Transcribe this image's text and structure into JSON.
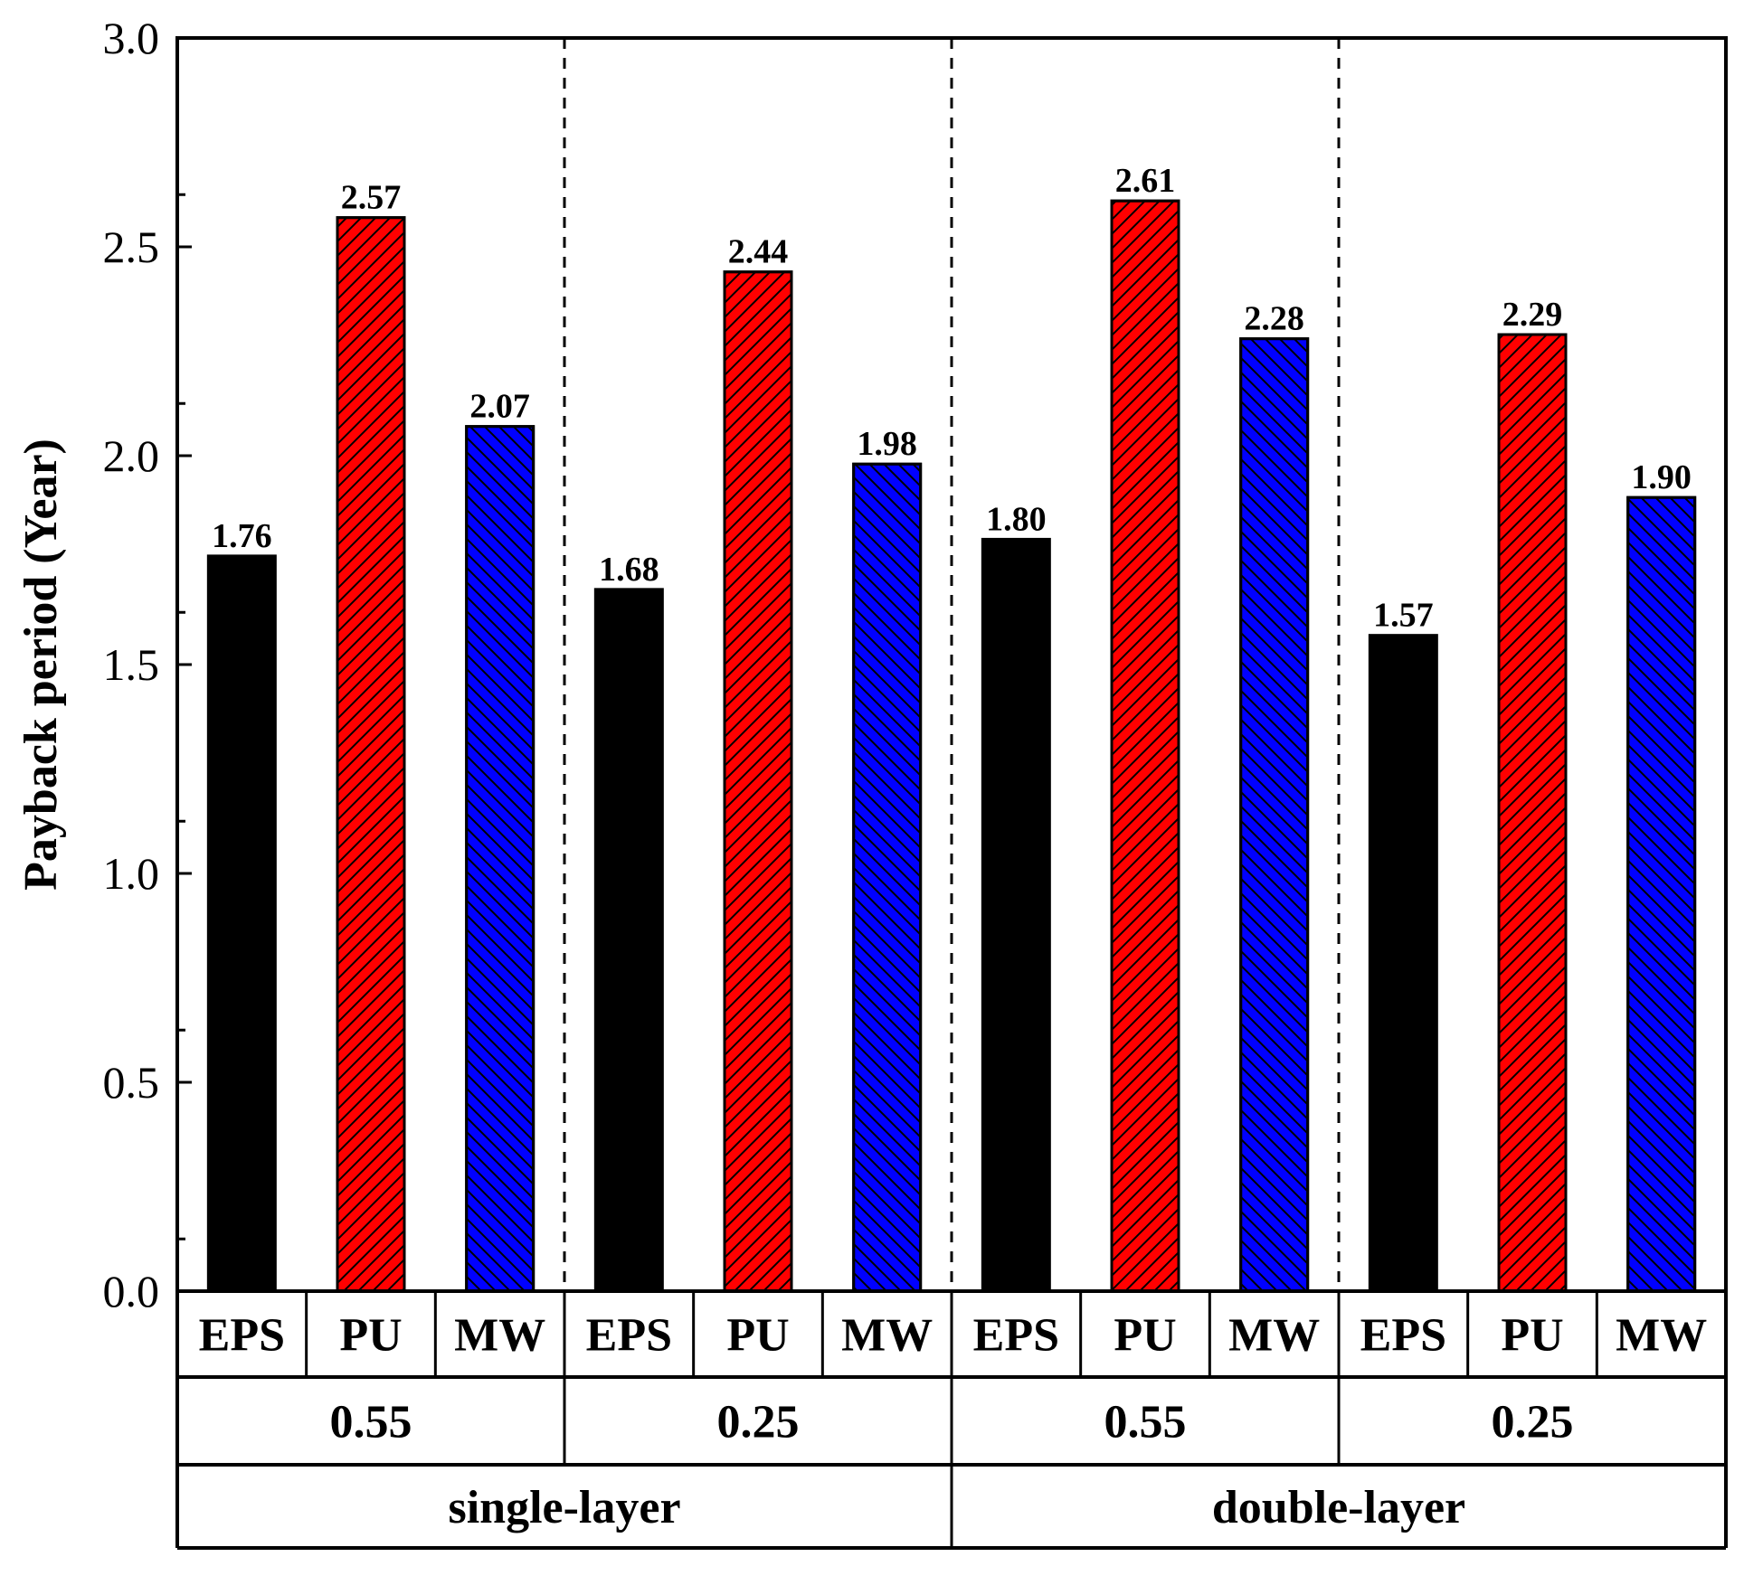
{
  "chart_data": {
    "type": "bar",
    "title": "",
    "xlabel": "",
    "ylabel": "Payback period (Year)",
    "ylim": [
      0,
      3.0
    ],
    "yticks": [
      "0.0",
      "0.5",
      "1.0",
      "1.5",
      "2.0",
      "2.5",
      "3.0"
    ],
    "ytick_values": [
      0,
      0.5,
      1.0,
      1.5,
      2.0,
      2.5,
      3.0
    ],
    "grid": false,
    "groups": [
      {
        "structure": "single-layer",
        "subgroups": [
          {
            "label": "0.55",
            "bars": [
              {
                "material": "EPS",
                "value": 1.76,
                "label": "1.76"
              },
              {
                "material": "PU",
                "value": 2.57,
                "label": "2.57"
              },
              {
                "material": "MW",
                "value": 2.07,
                "label": "2.07"
              }
            ]
          },
          {
            "label": "0.25",
            "bars": [
              {
                "material": "EPS",
                "value": 1.68,
                "label": "1.68"
              },
              {
                "material": "PU",
                "value": 2.44,
                "label": "2.44"
              },
              {
                "material": "MW",
                "value": 1.98,
                "label": "1.98"
              }
            ]
          }
        ]
      },
      {
        "structure": "double-layer",
        "subgroups": [
          {
            "label": "0.55",
            "bars": [
              {
                "material": "EPS",
                "value": 1.8,
                "label": "1.80"
              },
              {
                "material": "PU",
                "value": 2.61,
                "label": "2.61"
              },
              {
                "material": "MW",
                "value": 2.28,
                "label": "2.28"
              }
            ]
          },
          {
            "label": "0.25",
            "bars": [
              {
                "material": "EPS",
                "value": 1.57,
                "label": "1.57"
              },
              {
                "material": "PU",
                "value": 2.29,
                "label": "2.29"
              },
              {
                "material": "MW",
                "value": 1.9,
                "label": "1.90"
              }
            ]
          }
        ]
      }
    ],
    "material_styles": {
      "EPS": {
        "fill": "#000000",
        "hatch": "none"
      },
      "PU": {
        "fill": "#ff0000",
        "hatch": "forward"
      },
      "MW": {
        "fill": "#0000ff",
        "hatch": "backward"
      }
    }
  }
}
